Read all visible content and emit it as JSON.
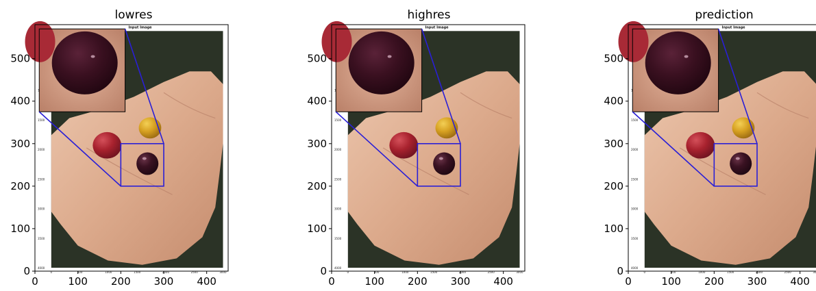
{
  "chart_data": [
    {
      "type": "image",
      "title": "lowres",
      "xticks": [
        "0",
        "100",
        "200",
        "300",
        "400"
      ],
      "yticks": [
        "0",
        "100",
        "200",
        "300",
        "400",
        "500"
      ],
      "xlim": [
        0,
        450
      ],
      "ylim": [
        0,
        580
      ],
      "grid": false,
      "zoom_box": {
        "x": [
          200,
          300
        ],
        "y": [
          200,
          300
        ]
      },
      "image_title": "Input Image",
      "image_xticks": [
        "0",
        "500",
        "1000",
        "1500",
        "2000",
        "2500",
        "3000"
      ],
      "image_yticks": [
        "0",
        "500",
        "1000",
        "1500",
        "2000",
        "2500",
        "3000",
        "3500",
        "4000"
      ]
    },
    {
      "type": "image",
      "title": "highres",
      "xticks": [
        "0",
        "100",
        "200",
        "300",
        "400"
      ],
      "yticks": [
        "0",
        "100",
        "200",
        "300",
        "400",
        "500"
      ],
      "xlim": [
        0,
        450
      ],
      "ylim": [
        0,
        580
      ],
      "grid": false,
      "zoom_box": {
        "x": [
          200,
          300
        ],
        "y": [
          200,
          300
        ]
      },
      "image_title": "Input Image",
      "image_xticks": [
        "0",
        "500",
        "1000",
        "1500",
        "2000",
        "2500",
        "3000"
      ],
      "image_yticks": [
        "0",
        "500",
        "1000",
        "1500",
        "2000",
        "2500",
        "3000",
        "3500",
        "4000"
      ]
    },
    {
      "type": "image",
      "title": "prediction",
      "xticks": [
        "0",
        "100",
        "200",
        "300",
        "400"
      ],
      "yticks": [
        "0",
        "100",
        "200",
        "300",
        "400",
        "500"
      ],
      "xlim": [
        0,
        450
      ],
      "ylim": [
        0,
        580
      ],
      "grid": false,
      "zoom_box": {
        "x": [
          200,
          300
        ],
        "y": [
          200,
          300
        ]
      },
      "image_title": "Input Image",
      "image_xticks": [
        "0",
        "500",
        "1000",
        "1500",
        "2000",
        "2500",
        "3000"
      ],
      "image_yticks": [
        "0",
        "500",
        "1000",
        "1500",
        "2000",
        "2500",
        "3000",
        "3500",
        "4000"
      ]
    }
  ],
  "colors": {
    "zoom_box": "#2a1fd6",
    "axis": "#000000",
    "background_dark": "#2b3326",
    "hand": "#d9a88a",
    "red_grape": "#a8222e",
    "yellow_grape": "#d6a021",
    "dark_grape": "#2d0d1a"
  }
}
